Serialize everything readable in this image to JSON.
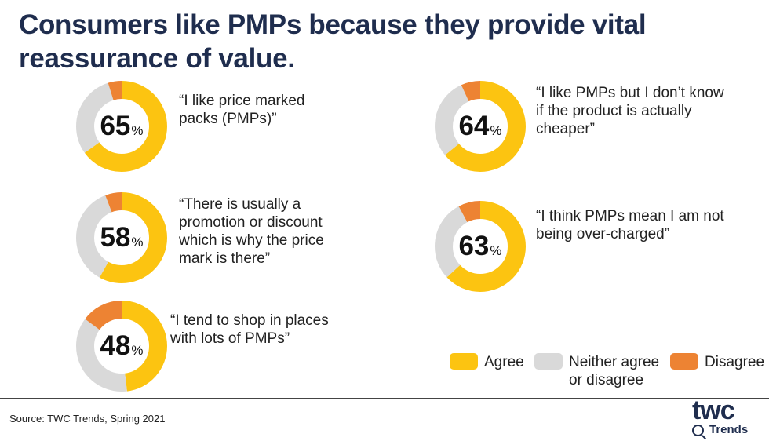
{
  "title": "Consumers like PMPs because they provide vital reassurance of value.",
  "colors": {
    "agree": "#FCC411",
    "neither": "#D9D9D9",
    "disagree": "#ED8333",
    "title": "#1F2D4E"
  },
  "chart_data": {
    "type": "pie",
    "categories": [
      "Agree",
      "Neither agree or disagree",
      "Disagree"
    ],
    "items": [
      {
        "statement": "“I like price marked packs (PMPs)”",
        "agree": 65,
        "neither": 30,
        "disagree": 5
      },
      {
        "statement": "“There is usually a promotion or discount which is why the price mark is there”",
        "agree": 58,
        "neither": 36,
        "disagree": 6
      },
      {
        "statement": "“I tend to shop in places with lots of PMPs”",
        "agree": 48,
        "neither": 37,
        "disagree": 15
      },
      {
        "statement": "“I like PMPs but I don’t know if the product is actually cheaper”",
        "agree": 64,
        "neither": 29,
        "disagree": 7
      },
      {
        "statement": "“I think PMPs mean I am not being over-charged”",
        "agree": 63,
        "neither": 29,
        "disagree": 8
      }
    ],
    "unit": "%",
    "legend": [
      {
        "label": "Agree",
        "key": "agree"
      },
      {
        "label": "Neither agree or disagree",
        "key": "neither"
      },
      {
        "label": "Disagree",
        "key": "disagree"
      }
    ],
    "legend_position": "bottom-right"
  },
  "footer": {
    "source": "Source: TWC Trends, Spring 2021"
  },
  "logo": {
    "word": "twc",
    "sub": "Trends"
  }
}
